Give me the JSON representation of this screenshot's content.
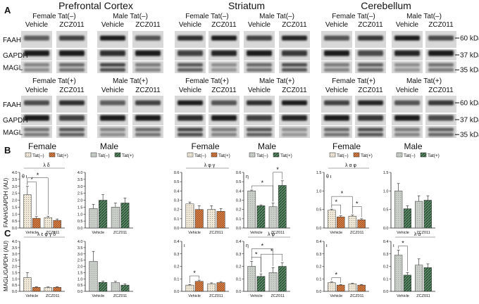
{
  "figure": {
    "panel_labels": [
      "A",
      "B",
      "C"
    ],
    "regions": [
      "Prefrontal Cortex",
      "Striatum",
      "Cerebellum"
    ],
    "sex_labels": [
      "Female",
      "Male"
    ],
    "blot_group_minus": [
      "Female Tat(–)",
      "Male Tat(–)"
    ],
    "blot_group_plus": [
      "Female Tat(+)",
      "Male Tat(+)"
    ],
    "treatments": [
      "Vehicle",
      "ZCZ011"
    ],
    "blot_rows": [
      "FAAH",
      "GAPDH",
      "MAGL"
    ],
    "kda": [
      "60 kDa",
      "37 kDa",
      "35 kDa"
    ],
    "legend": [
      "Tat(–)",
      "Tat(+)"
    ],
    "ylabel_B": "FAAH/GAPDH (AU)",
    "ylabel_C": "MAGL/GAPDH (AU)",
    "colors": {
      "tat_minus_light": "#efe8d8",
      "tat_minus_gray": "#c9cec9",
      "tat_plus_orange": "#c96a2a",
      "tat_plus_green": "#3f6f4f"
    }
  },
  "chart_data": [
    {
      "type": "bar",
      "panel": "B",
      "region": "Prefrontal Cortex",
      "sex": "Female",
      "categories": [
        "Vehicle",
        "ZCZ011"
      ],
      "series": [
        {
          "name": "Tat(–)",
          "values": [
            2.4,
            0.75
          ],
          "err": [
            0.6,
            0.1
          ]
        },
        {
          "name": "Tat(+)",
          "values": [
            0.7,
            0.55
          ],
          "err": [
            0.12,
            0.1
          ]
        }
      ],
      "ylim": [
        0,
        4
      ],
      "yticks": [
        "0.0",
        "0.5",
        "1.0",
        "1.5",
        "2.0",
        "2.5",
        "3.0",
        "3.5",
        "4.0"
      ],
      "stats": "θ ι",
      "sig": "λ δ",
      "stars": [
        [
          0,
          0,
          0,
          1
        ],
        [
          0,
          0,
          1,
          0
        ]
      ]
    },
    {
      "type": "bar",
      "panel": "B",
      "region": "Prefrontal Cortex",
      "sex": "Male",
      "categories": [
        "Vehicle",
        "ZCZ011"
      ],
      "series": [
        {
          "name": "Tat(–)",
          "values": [
            1.4,
            1.5
          ],
          "err": [
            0.3,
            0.3
          ]
        },
        {
          "name": "Tat(+)",
          "values": [
            2.0,
            1.8
          ],
          "err": [
            0.4,
            0.35
          ]
        }
      ],
      "ylim": [
        0,
        4
      ],
      "yticks": [
        "0.0",
        "0.5",
        "1.0",
        "1.5",
        "2.0",
        "2.5",
        "3.0",
        "3.5",
        "4.0"
      ],
      "stats": "",
      "sig": "",
      "stars": []
    },
    {
      "type": "bar",
      "panel": "B",
      "region": "Striatum",
      "sex": "Female",
      "categories": [
        "Vehicle",
        "ZCZ011"
      ],
      "series": [
        {
          "name": "Tat(–)",
          "values": [
            0.26,
            0.2
          ],
          "err": [
            0.02,
            0.04
          ]
        },
        {
          "name": "Tat(+)",
          "values": [
            0.2,
            0.18
          ],
          "err": [
            0.04,
            0.03
          ]
        }
      ],
      "ylim": [
        0,
        0.6
      ],
      "yticks": [
        "0.0",
        "0.1",
        "0.2",
        "0.3",
        "0.4",
        "0.5",
        "0.6"
      ],
      "stats": "",
      "sig": "λ φ γ",
      "stars": []
    },
    {
      "type": "bar",
      "panel": "B",
      "region": "Striatum",
      "sex": "Male",
      "categories": [
        "Vehicle",
        "ZCZ011"
      ],
      "series": [
        {
          "name": "Tat(–)",
          "values": [
            0.4,
            0.23
          ],
          "err": [
            0.01,
            0.04
          ]
        },
        {
          "name": "Tat(+)",
          "values": [
            0.24,
            0.46
          ],
          "err": [
            0.01,
            0.05
          ]
        }
      ],
      "ylim": [
        0,
        0.6
      ],
      "yticks": [
        "0.0",
        "0.1",
        "0.2",
        "0.3",
        "0.4",
        "0.5",
        "0.6"
      ],
      "stats": "η",
      "sig": "",
      "stars": [
        [
          0,
          0,
          1,
          0
        ],
        [
          1,
          0,
          1,
          1
        ]
      ]
    },
    {
      "type": "bar",
      "panel": "B",
      "region": "Cerebellum",
      "sex": "Female",
      "categories": [
        "Vehicle",
        "ZCZ011"
      ],
      "series": [
        {
          "name": "Tat(–)",
          "values": [
            0.48,
            0.32
          ],
          "err": [
            0.03,
            0.03
          ]
        },
        {
          "name": "Tat(+)",
          "values": [
            0.3,
            0.22
          ],
          "err": [
            0.03,
            0.03
          ]
        }
      ],
      "ylim": [
        0,
        1.5
      ],
      "yticks": [
        "0.0",
        "0.5",
        "1.0",
        "1.5"
      ],
      "stats": "θ ι",
      "sig": "λ α φ",
      "stars": [
        [
          0,
          0,
          0,
          1
        ],
        [
          1,
          0,
          1,
          1
        ],
        [
          0,
          0,
          1,
          0
        ]
      ]
    },
    {
      "type": "bar",
      "panel": "B",
      "region": "Cerebellum",
      "sex": "Male",
      "categories": [
        "Vehicle",
        "ZCZ011"
      ],
      "series": [
        {
          "name": "Tat(–)",
          "values": [
            1.0,
            0.72
          ],
          "err": [
            0.2,
            0.15
          ]
        },
        {
          "name": "Tat(+)",
          "values": [
            0.52,
            0.75
          ],
          "err": [
            0.08,
            0.12
          ]
        }
      ],
      "ylim": [
        0,
        1.5
      ],
      "yticks": [
        "0.0",
        "0.5",
        "1.0",
        "1.5"
      ],
      "stats": "",
      "sig": "",
      "stars": []
    },
    {
      "type": "bar",
      "panel": "C",
      "region": "Prefrontal Cortex",
      "sex": "Female",
      "categories": [
        "Vehicle",
        "ZCZ011"
      ],
      "series": [
        {
          "name": "Tat(–)",
          "values": [
            1.1,
            0.3
          ],
          "err": [
            0.4,
            0.05
          ]
        },
        {
          "name": "Tat(+)",
          "values": [
            0.32,
            0.32
          ],
          "err": [
            0.05,
            0.05
          ]
        }
      ],
      "ylim": [
        0,
        4
      ],
      "yticks": [
        "0.0",
        "0.5",
        "1.0",
        "1.5",
        "2.0",
        "2.5",
        "3.0",
        "3.5",
        "4.0"
      ],
      "stats": "",
      "sig": "λ ε φ γ δ",
      "stars": []
    },
    {
      "type": "bar",
      "panel": "C",
      "region": "Prefrontal Cortex",
      "sex": "Male",
      "categories": [
        "Vehicle",
        "ZCZ011"
      ],
      "series": [
        {
          "name": "Tat(–)",
          "values": [
            2.4,
            0.7
          ],
          "err": [
            0.8,
            0.1
          ]
        },
        {
          "name": "Tat(+)",
          "values": [
            0.72,
            0.5
          ],
          "err": [
            0.1,
            0.1
          ]
        }
      ],
      "ylim": [
        0,
        4
      ],
      "yticks": [
        "0.0",
        "0.5",
        "1.0",
        "1.5",
        "2.0",
        "2.5",
        "3.0",
        "3.5",
        "4.0"
      ],
      "stats": "",
      "sig": "",
      "stars": []
    },
    {
      "type": "bar",
      "panel": "C",
      "region": "Striatum",
      "sex": "Female",
      "categories": [
        "Vehicle",
        "ZCZ011"
      ],
      "series": [
        {
          "name": "Tat(–)",
          "values": [
            0.05,
            0.06
          ],
          "err": [
            0.005,
            0.008
          ]
        },
        {
          "name": "Tat(+)",
          "values": [
            0.08,
            0.07
          ],
          "err": [
            0.01,
            0.008
          ]
        }
      ],
      "ylim": [
        0,
        0.4
      ],
      "yticks": [
        "0.0",
        "0.1",
        "0.2",
        "0.3",
        "0.4"
      ],
      "stats": "ι",
      "sig": "",
      "stars": [
        [
          0,
          0,
          0,
          1
        ]
      ]
    },
    {
      "type": "bar",
      "panel": "C",
      "region": "Striatum",
      "sex": "Male",
      "categories": [
        "Vehicle",
        "ZCZ011"
      ],
      "series": [
        {
          "name": "Tat(–)",
          "values": [
            0.2,
            0.15
          ],
          "err": [
            0.04,
            0.04
          ]
        },
        {
          "name": "Tat(+)",
          "values": [
            0.12,
            0.2
          ],
          "err": [
            0.02,
            0.03
          ]
        }
      ],
      "ylim": [
        0,
        0.4
      ],
      "yticks": [
        "0.0",
        "0.1",
        "0.2",
        "0.3",
        "0.4"
      ],
      "stats": "η",
      "sig": "λ φ",
      "stars": [
        [
          0,
          0,
          0,
          1
        ],
        [
          0,
          1,
          1,
          1
        ],
        [
          0,
          0,
          1,
          0
        ]
      ]
    },
    {
      "type": "bar",
      "panel": "C",
      "region": "Cerebellum",
      "sex": "Female",
      "categories": [
        "Vehicle",
        "ZCZ011"
      ],
      "series": [
        {
          "name": "Tat(–)",
          "values": [
            0.07,
            0.06
          ],
          "err": [
            0.005,
            0.005
          ]
        },
        {
          "name": "Tat(+)",
          "values": [
            0.05,
            0.05
          ],
          "err": [
            0.005,
            0.005
          ]
        }
      ],
      "ylim": [
        0,
        0.4
      ],
      "yticks": [
        "0.0",
        "0.1",
        "0.2",
        "0.3",
        "0.4"
      ],
      "stats": "ι",
      "sig": "",
      "stars": [
        [
          0,
          0,
          0,
          1
        ]
      ]
    },
    {
      "type": "bar",
      "panel": "C",
      "region": "Cerebellum",
      "sex": "Male",
      "categories": [
        "Vehicle",
        "ZCZ011"
      ],
      "series": [
        {
          "name": "Tat(–)",
          "values": [
            0.29,
            0.21
          ],
          "err": [
            0.04,
            0.05
          ]
        },
        {
          "name": "Tat(+)",
          "values": [
            0.13,
            0.19
          ],
          "err": [
            0.02,
            0.03
          ]
        }
      ],
      "ylim": [
        0,
        0.4
      ],
      "yticks": [
        "0.0",
        "0.1",
        "0.2",
        "0.3",
        "0.4"
      ],
      "stats": "ι",
      "sig": "λ α",
      "stars": [
        [
          0,
          0,
          0,
          1
        ]
      ]
    }
  ]
}
